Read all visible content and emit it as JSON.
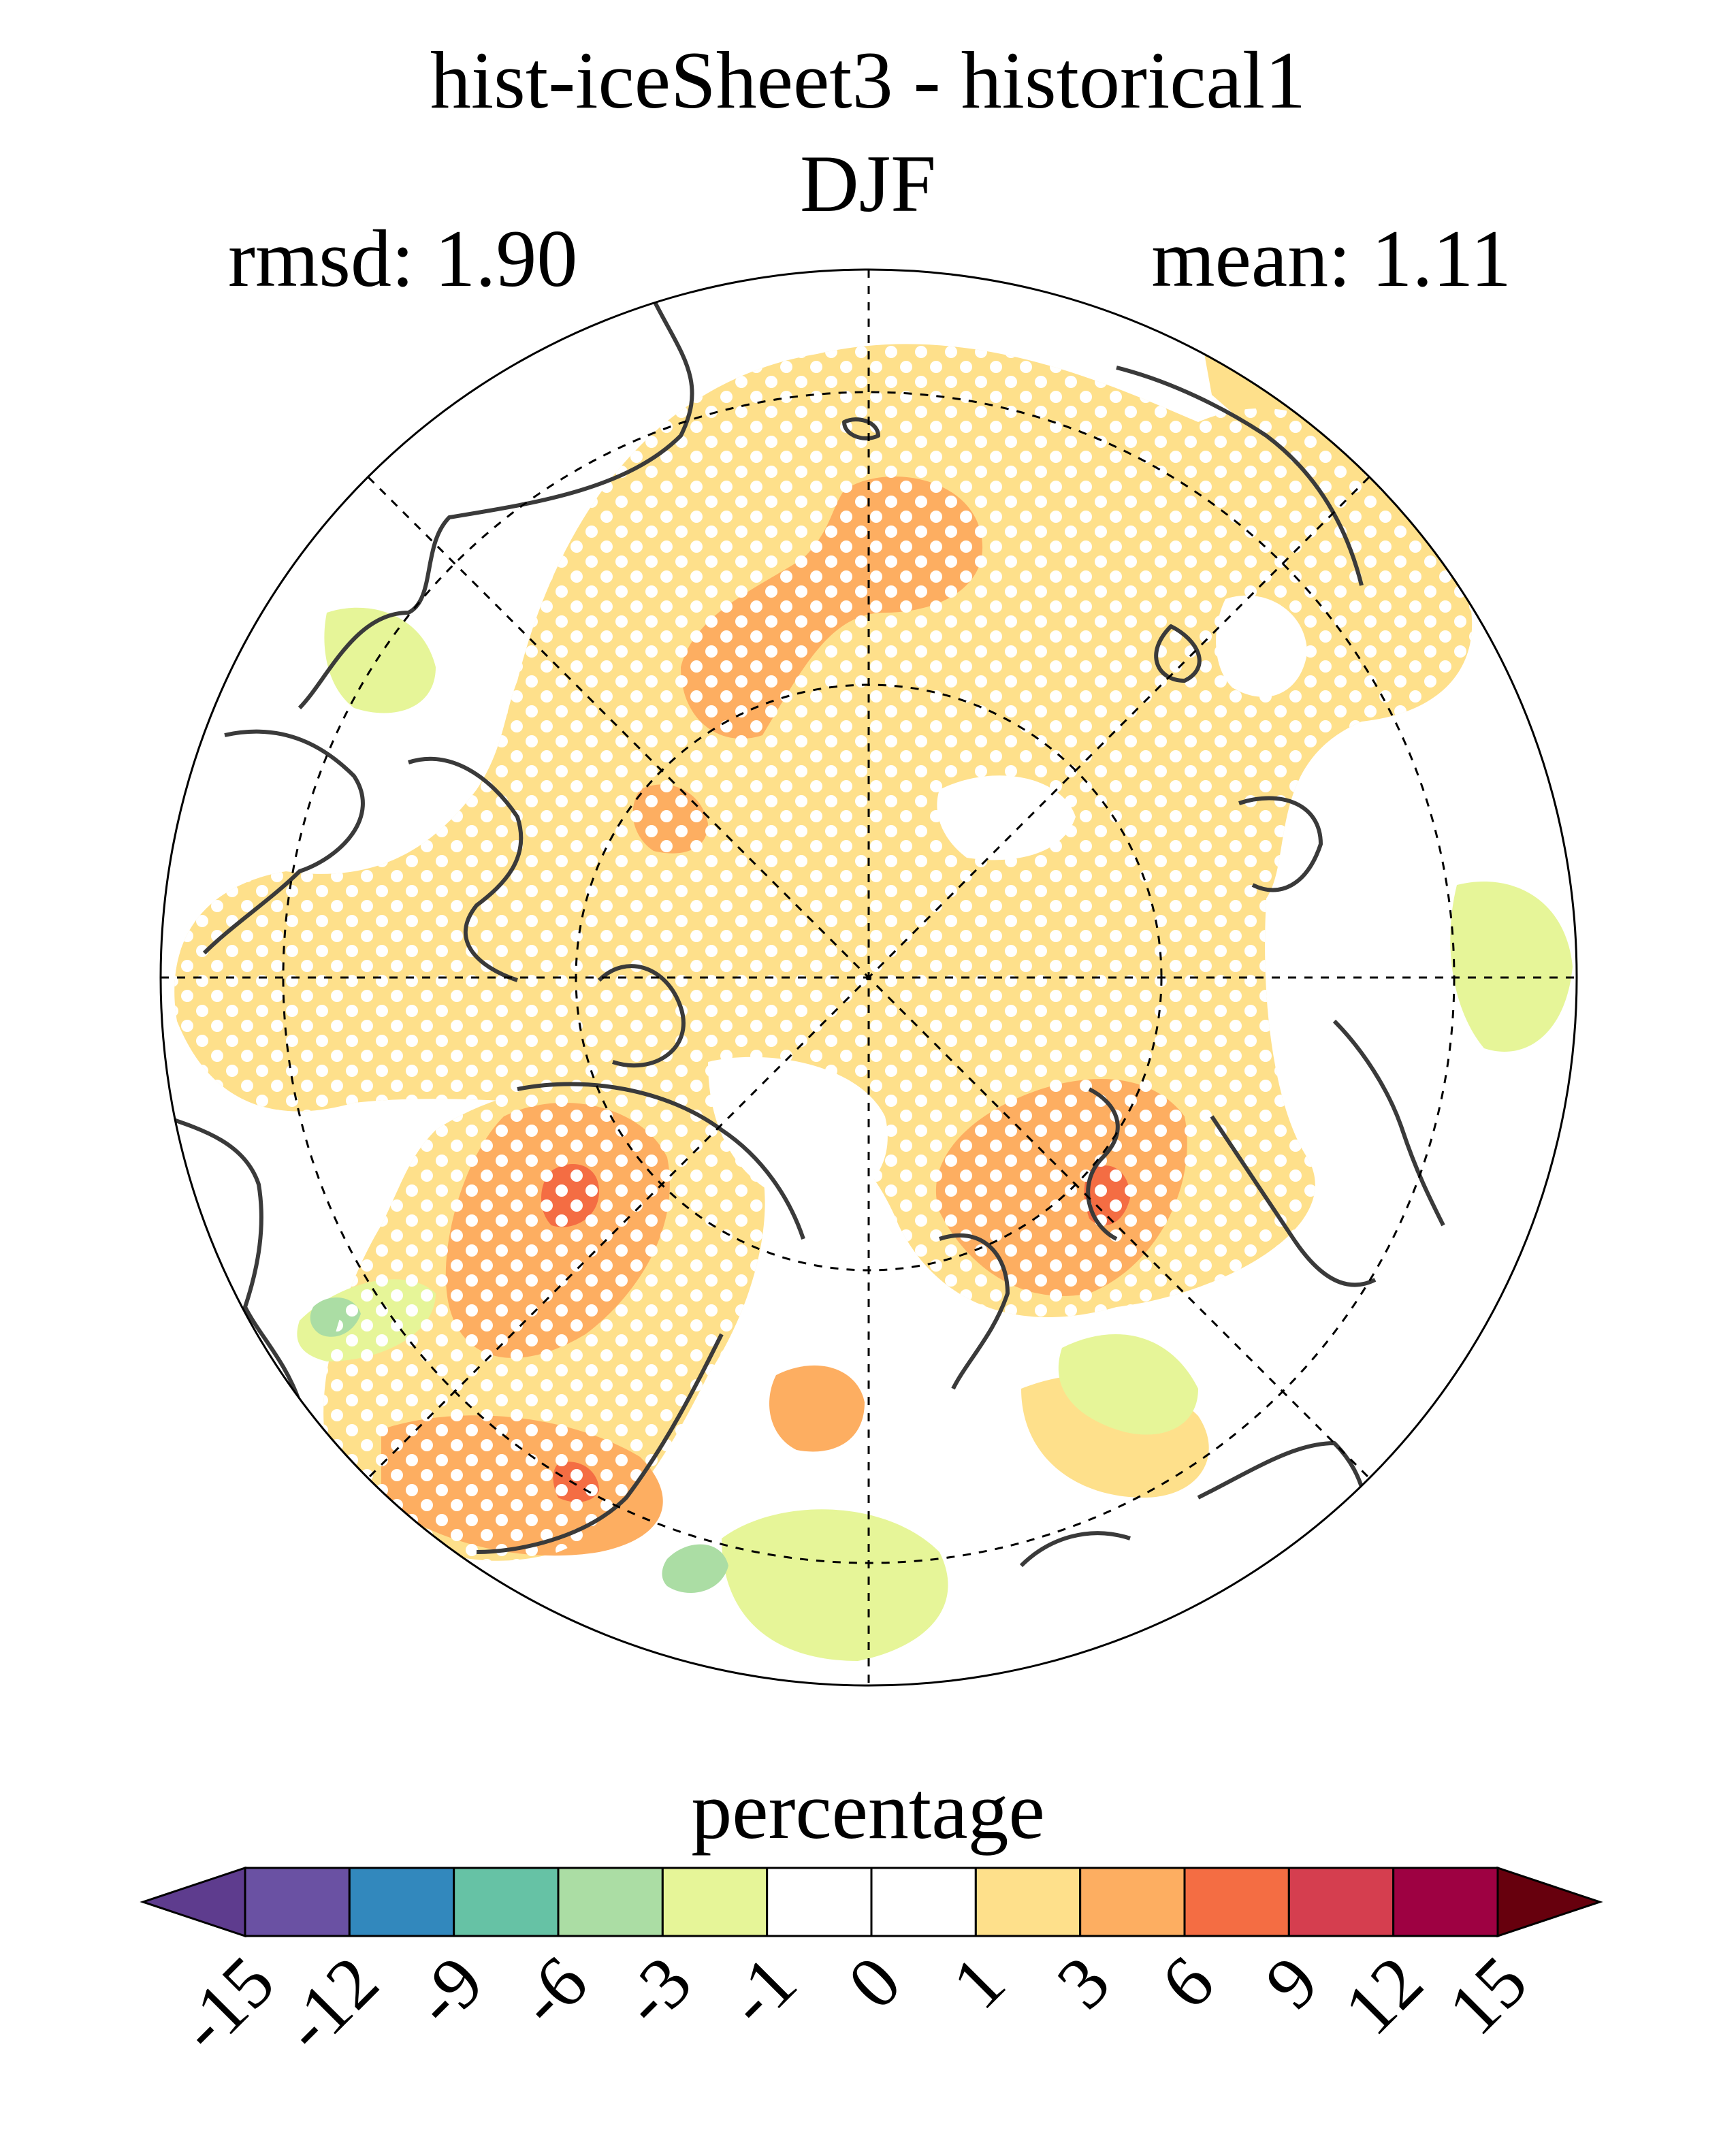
{
  "title": "hist-iceSheet3 - historical1",
  "subtitle": "DJF",
  "stats": {
    "rmsd": "rmsd: 1.90",
    "mean": "mean: 1.11"
  },
  "colorbar": {
    "label": "percentage",
    "ticks": [
      "-15",
      "-12",
      "-9",
      "-6",
      "-3",
      "-1",
      "0",
      "1",
      "3",
      "6",
      "9",
      "12",
      "15"
    ],
    "colors": [
      "#5e3c8e",
      "#6a51a3",
      "#3288bd",
      "#66c2a5",
      "#abdda4",
      "#e6f598",
      "#ffffff",
      "#ffffff",
      "#fee08b",
      "#fdae61",
      "#f46d43",
      "#d53e4f",
      "#9e0142",
      "#67000d"
    ]
  },
  "map": {
    "projection": "north polar stereographic",
    "grid": true,
    "stippling": "white dots"
  }
}
